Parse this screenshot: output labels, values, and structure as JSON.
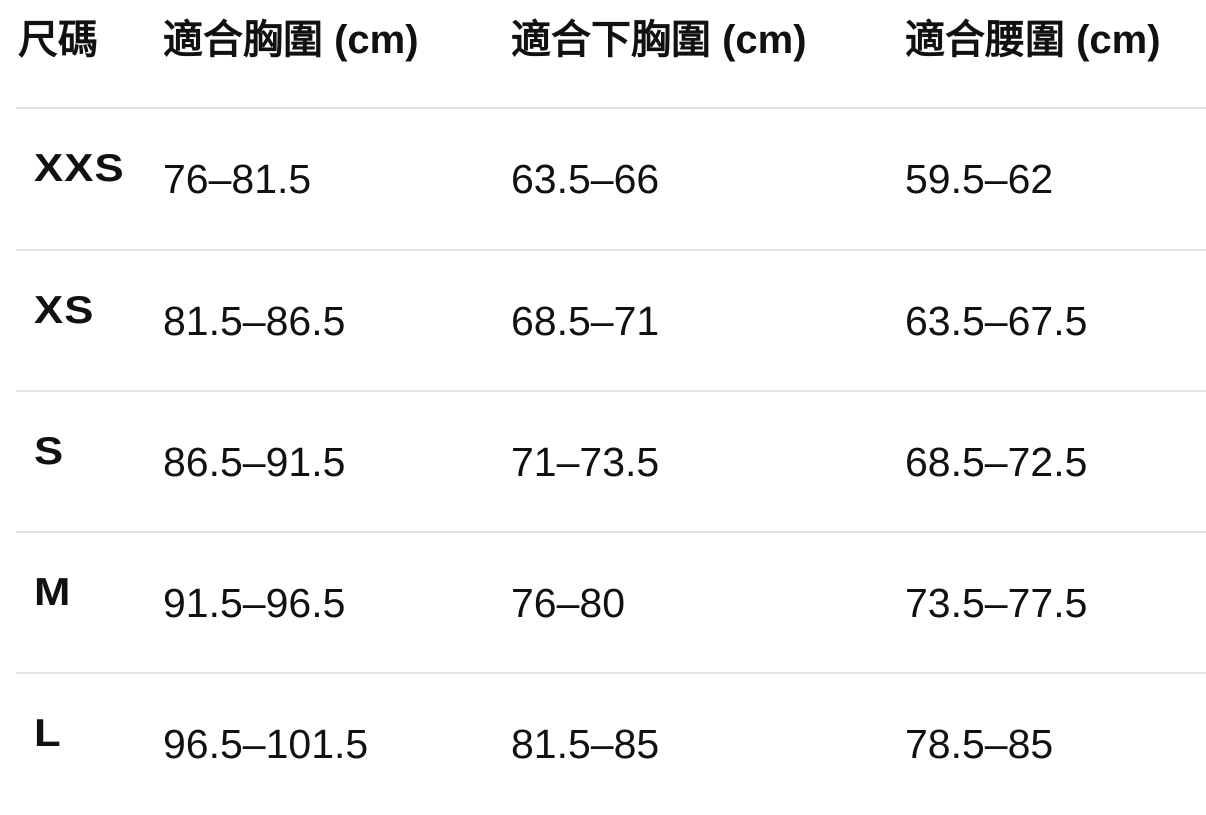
{
  "headers": [
    "尺碼",
    "適合胸圍 (cm)",
    "適合下胸圍 (cm)",
    "適合腰圍 (cm)"
  ],
  "rows": [
    {
      "size": "XXS",
      "bust": "76–81.5",
      "underbust": "63.5–66",
      "waist": "59.5–62"
    },
    {
      "size": "XS",
      "bust": "81.5–86.5",
      "underbust": "68.5–71",
      "waist": "63.5–67.5"
    },
    {
      "size": "S",
      "bust": "86.5–91.5",
      "underbust": "71–73.5",
      "waist": "68.5–72.5"
    },
    {
      "size": "M",
      "bust": "91.5–96.5",
      "underbust": "76–80",
      "waist": "73.5–77.5"
    },
    {
      "size": "L",
      "bust": "96.5–101.5",
      "underbust": "81.5–85",
      "waist": "78.5–85"
    }
  ]
}
